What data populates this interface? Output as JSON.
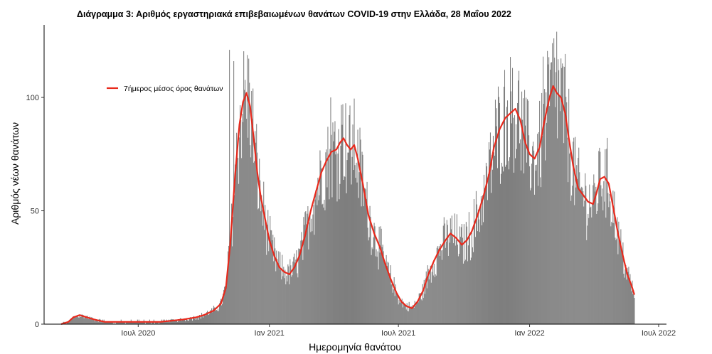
{
  "chart_data": {
    "type": "bar",
    "title": "Διάγραμμα 3: Αριθμός εργαστηριακά επιβεβαιωμένων θανάτων COVID-19 στην Ελλάδα, 28 Μαΐου 2022",
    "xlabel": "Ημερομηνία θανάτου",
    "ylabel": "Αριθμός νέων θανάτων",
    "ylim": [
      0,
      132
    ],
    "yticks": [
      0,
      50,
      100
    ],
    "xlim": [
      "2020-02-20",
      "2022-07-12"
    ],
    "xticks": [
      {
        "date": "2020-07-01",
        "label": "Ιουλ 2020"
      },
      {
        "date": "2021-01-01",
        "label": "Ιαν 2021"
      },
      {
        "date": "2021-07-01",
        "label": "Ιουλ 2021"
      },
      {
        "date": "2022-01-01",
        "label": "Ιαν 2022"
      },
      {
        "date": "2022-07-01",
        "label": "Ιουλ 2022"
      }
    ],
    "grid": false,
    "legend": {
      "position": "top-left",
      "entries": [
        {
          "label": "7ήμερος μέσος όρος θανάτων",
          "color": "#e8291c",
          "kind": "line"
        }
      ]
    },
    "bar_color": "#7f7f7f",
    "line_color": "#e8291c",
    "series": [
      {
        "name": "7ήμερος μέσος όρος θανάτων",
        "type": "line",
        "points": [
          [
            "2020-03-15",
            0
          ],
          [
            "2020-03-25",
            1
          ],
          [
            "2020-04-01",
            3
          ],
          [
            "2020-04-10",
            4
          ],
          [
            "2020-04-20",
            3
          ],
          [
            "2020-05-01",
            2
          ],
          [
            "2020-05-15",
            1
          ],
          [
            "2020-06-01",
            1
          ],
          [
            "2020-07-01",
            1
          ],
          [
            "2020-08-01",
            1
          ],
          [
            "2020-09-01",
            2
          ],
          [
            "2020-09-20",
            3
          ],
          [
            "2020-10-01",
            4
          ],
          [
            "2020-10-15",
            6
          ],
          [
            "2020-10-25",
            9
          ],
          [
            "2020-11-01",
            16
          ],
          [
            "2020-11-07",
            35
          ],
          [
            "2020-11-14",
            66
          ],
          [
            "2020-11-20",
            88
          ],
          [
            "2020-11-25",
            98
          ],
          [
            "2020-11-30",
            102
          ],
          [
            "2020-12-05",
            96
          ],
          [
            "2020-12-10",
            82
          ],
          [
            "2020-12-15",
            67
          ],
          [
            "2020-12-20",
            56
          ],
          [
            "2020-12-25",
            48
          ],
          [
            "2021-01-01",
            37
          ],
          [
            "2021-01-08",
            30
          ],
          [
            "2021-01-15",
            25
          ],
          [
            "2021-01-22",
            23
          ],
          [
            "2021-01-29",
            22
          ],
          [
            "2021-02-05",
            25
          ],
          [
            "2021-02-12",
            30
          ],
          [
            "2021-02-20",
            39
          ],
          [
            "2021-02-28",
            50
          ],
          [
            "2021-03-07",
            58
          ],
          [
            "2021-03-15",
            67
          ],
          [
            "2021-03-22",
            72
          ],
          [
            "2021-03-29",
            76
          ],
          [
            "2021-04-05",
            77
          ],
          [
            "2021-04-10",
            80
          ],
          [
            "2021-04-15",
            82
          ],
          [
            "2021-04-20",
            79
          ],
          [
            "2021-04-25",
            77
          ],
          [
            "2021-04-30",
            79
          ],
          [
            "2021-05-05",
            73
          ],
          [
            "2021-05-12",
            62
          ],
          [
            "2021-05-20",
            48
          ],
          [
            "2021-05-28",
            40
          ],
          [
            "2021-06-05",
            34
          ],
          [
            "2021-06-12",
            27
          ],
          [
            "2021-06-20",
            20
          ],
          [
            "2021-06-28",
            14
          ],
          [
            "2021-07-05",
            10
          ],
          [
            "2021-07-12",
            8
          ],
          [
            "2021-07-20",
            7
          ],
          [
            "2021-07-28",
            10
          ],
          [
            "2021-08-05",
            15
          ],
          [
            "2021-08-12",
            22
          ],
          [
            "2021-08-20",
            28
          ],
          [
            "2021-08-28",
            33
          ],
          [
            "2021-09-05",
            37
          ],
          [
            "2021-09-12",
            40
          ],
          [
            "2021-09-20",
            38
          ],
          [
            "2021-09-28",
            35
          ],
          [
            "2021-10-05",
            37
          ],
          [
            "2021-10-12",
            41
          ],
          [
            "2021-10-20",
            48
          ],
          [
            "2021-10-28",
            56
          ],
          [
            "2021-11-05",
            66
          ],
          [
            "2021-11-12",
            78
          ],
          [
            "2021-11-20",
            86
          ],
          [
            "2021-11-28",
            91
          ],
          [
            "2021-12-05",
            93
          ],
          [
            "2021-12-12",
            95
          ],
          [
            "2021-12-19",
            90
          ],
          [
            "2021-12-26",
            80
          ],
          [
            "2022-01-01",
            75
          ],
          [
            "2022-01-08",
            73
          ],
          [
            "2022-01-15",
            78
          ],
          [
            "2022-01-22",
            90
          ],
          [
            "2022-01-29",
            100
          ],
          [
            "2022-02-03",
            105
          ],
          [
            "2022-02-08",
            102
          ],
          [
            "2022-02-14",
            100
          ],
          [
            "2022-02-20",
            93
          ],
          [
            "2022-02-25",
            82
          ],
          [
            "2022-03-03",
            70
          ],
          [
            "2022-03-10",
            60
          ],
          [
            "2022-03-17",
            57
          ],
          [
            "2022-03-24",
            54
          ],
          [
            "2022-03-31",
            53
          ],
          [
            "2022-04-05",
            58
          ],
          [
            "2022-04-10",
            64
          ],
          [
            "2022-04-16",
            65
          ],
          [
            "2022-04-22",
            62
          ],
          [
            "2022-04-28",
            52
          ],
          [
            "2022-05-05",
            40
          ],
          [
            "2022-05-12",
            30
          ],
          [
            "2022-05-18",
            22
          ],
          [
            "2022-05-24",
            17
          ],
          [
            "2022-05-28",
            13
          ]
        ]
      }
    ],
    "bar_range": [
      "2020-03-10",
      "2022-05-28"
    ],
    "bar_peaks": [
      [
        "2020-11-06",
        121
      ],
      [
        "2020-11-12",
        116
      ],
      [
        "2021-03-28",
        100
      ],
      [
        "2021-04-14",
        97
      ],
      [
        "2021-12-08",
        113
      ],
      [
        "2022-02-08",
        129
      ],
      [
        "2022-01-20",
        118
      ],
      [
        "2022-04-10",
        76
      ]
    ]
  }
}
